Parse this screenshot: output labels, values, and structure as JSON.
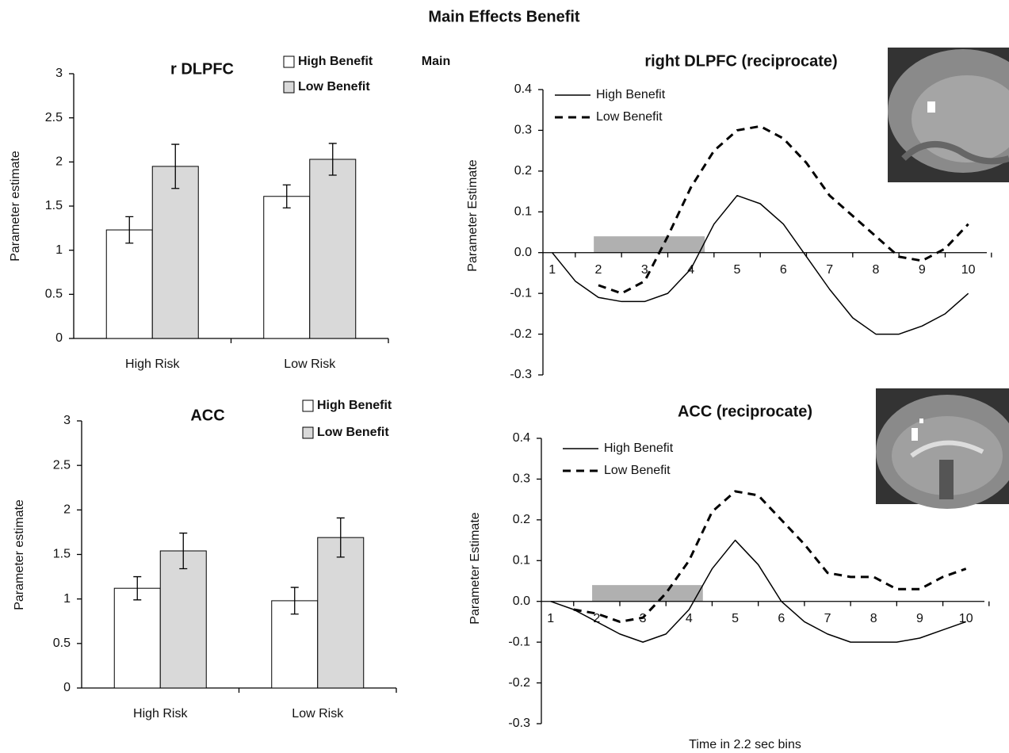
{
  "title": "Main Effects Benefit",
  "chart_data": [
    {
      "type": "bar",
      "title": "r DLPFC",
      "y_label": "Parameter estimate",
      "annotations": [
        "Main"
      ],
      "categories": [
        "High Risk",
        "Low Risk"
      ],
      "series": [
        {
          "name": "High Benefit",
          "color": "#ffffff",
          "values": [
            1.23,
            1.61
          ],
          "errors": [
            0.15,
            0.13
          ]
        },
        {
          "name": "Low Benefit",
          "color": "#d9d9d9",
          "values": [
            1.95,
            2.03
          ],
          "errors": [
            0.25,
            0.18
          ]
        }
      ],
      "ylim": [
        0,
        3
      ],
      "yticks": [
        0,
        0.5,
        1,
        1.5,
        2,
        2.5,
        3
      ],
      "grid": false
    },
    {
      "type": "bar",
      "title": "ACC",
      "y_label": "Parameter estimate",
      "categories": [
        "High Risk",
        "Low Risk"
      ],
      "series": [
        {
          "name": "High Benefit",
          "color": "#ffffff",
          "values": [
            1.12,
            0.98
          ],
          "errors": [
            0.13,
            0.15
          ]
        },
        {
          "name": "Low Benefit",
          "color": "#d9d9d9",
          "values": [
            1.54,
            1.69
          ],
          "errors": [
            0.2,
            0.22
          ]
        }
      ],
      "ylim": [
        0,
        3
      ],
      "yticks": [
        0,
        0.5,
        1,
        1.5,
        2,
        2.5,
        3
      ],
      "grid": false
    },
    {
      "type": "line",
      "title": "right DLPFC (reciprocate)",
      "y_label": "Parameter Estimate",
      "x": [
        1,
        1.5,
        2,
        2.5,
        3,
        3.5,
        4,
        4.5,
        5,
        5.5,
        6,
        6.5,
        7,
        7.5,
        8,
        8.5,
        9,
        9.5,
        10
      ],
      "series": [
        {
          "name": "High Benefit",
          "color": "#000000",
          "dashed": false,
          "values": [
            0,
            -0.07,
            -0.11,
            -0.12,
            -0.12,
            -0.1,
            -0.04,
            0.07,
            0.14,
            0.12,
            0.07,
            -0.01,
            -0.09,
            -0.16,
            -0.2,
            -0.2,
            -0.18,
            -0.15,
            -0.1
          ]
        },
        {
          "name": "Low Benefit",
          "color": "#000000",
          "dashed": true,
          "values": [
            null,
            null,
            -0.08,
            -0.1,
            -0.07,
            0.04,
            0.16,
            0.25,
            0.3,
            0.31,
            0.28,
            0.22,
            0.14,
            0.09,
            0.04,
            -0.01,
            -0.02,
            0.01,
            0.07
          ]
        }
      ],
      "shaded_region": {
        "x0": 1.9,
        "x1": 4.3,
        "y1": 0.04,
        "color": "#b0b0b0"
      },
      "xlim": [
        0.8,
        10.4
      ],
      "xticks": [
        1,
        2,
        3,
        4,
        5,
        6,
        7,
        8,
        9,
        10
      ],
      "ylim": [
        -0.3,
        0.4
      ],
      "yticks": [
        -0.3,
        -0.2,
        -0.1,
        {
          "value": 0,
          "label": "0.0"
        },
        0.1,
        0.2,
        0.3,
        0.4
      ],
      "grid": false
    },
    {
      "type": "line",
      "title": "ACC (reciprocate)",
      "y_label": "Parameter Estimate",
      "x_label": "Time in 2.2 sec bins",
      "x": [
        1,
        1.5,
        2,
        2.5,
        3,
        3.5,
        4,
        4.5,
        5,
        5.5,
        6,
        6.5,
        7,
        7.5,
        8,
        8.5,
        9,
        9.5,
        10
      ],
      "series": [
        {
          "name": "High Benefit",
          "color": "#000000",
          "dashed": false,
          "values": [
            0,
            -0.02,
            -0.05,
            -0.08,
            -0.1,
            -0.08,
            -0.02,
            0.08,
            0.15,
            0.09,
            0,
            -0.05,
            -0.08,
            -0.1,
            -0.1,
            -0.1,
            -0.09,
            -0.07,
            -0.05
          ]
        },
        {
          "name": "Low Benefit",
          "color": "#000000",
          "dashed": true,
          "values": [
            null,
            -0.02,
            -0.03,
            -0.05,
            -0.04,
            0.02,
            0.1,
            0.22,
            0.27,
            0.26,
            0.2,
            0.14,
            0.07,
            0.06,
            0.06,
            0.03,
            0.03,
            0.06,
            0.08
          ]
        }
      ],
      "shaded_region": {
        "x0": 1.9,
        "x1": 4.3,
        "y1": 0.04,
        "color": "#b0b0b0"
      },
      "xlim": [
        0.8,
        10.4
      ],
      "xticks": [
        1,
        2,
        3,
        4,
        5,
        6,
        7,
        8,
        9,
        10
      ],
      "ylim": [
        -0.3,
        0.4
      ],
      "yticks": [
        -0.3,
        -0.2,
        -0.1,
        {
          "value": 0,
          "label": "0.0"
        },
        0.1,
        0.2,
        0.3,
        0.4
      ],
      "grid": false
    }
  ]
}
